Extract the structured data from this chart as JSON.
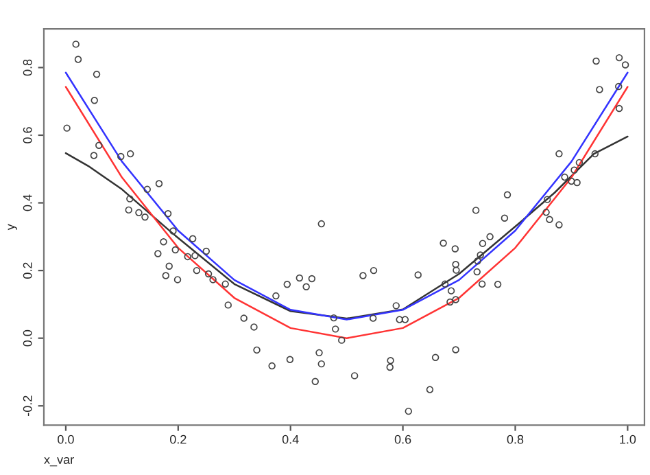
{
  "chart_data": {
    "type": "scatter",
    "xlabel": "x_var",
    "ylabel": "y",
    "xlim": [
      -0.039,
      1.03
    ],
    "ylim": [
      -0.257,
      0.914
    ],
    "xticks": [
      {
        "value": 0,
        "label": "0.0"
      },
      {
        "value": 0.2,
        "label": "0.2"
      },
      {
        "value": 0.4,
        "label": "0.4"
      },
      {
        "value": 0.6,
        "label": "0.6"
      },
      {
        "value": 0.8,
        "label": "0.8"
      },
      {
        "value": 1,
        "label": "1.0"
      }
    ],
    "yticks": [
      {
        "value": -0.2,
        "label": "-0.2"
      },
      {
        "value": 0,
        "label": "0.0"
      },
      {
        "value": 0.2,
        "label": "0.2"
      },
      {
        "value": 0.4,
        "label": "0.4"
      },
      {
        "value": 0.6,
        "label": "0.6"
      },
      {
        "value": 0.8,
        "label": "0.8"
      }
    ],
    "grid": false,
    "series": [
      {
        "marker": "circle",
        "color": "#444444",
        "x": [
          0.018,
          0.022,
          0.055,
          0.051,
          0.002,
          0.059,
          0.05,
          0.098,
          0.115,
          0.166,
          0.145,
          0.114,
          0.112,
          0.13,
          0.141,
          0.182,
          0.191,
          0.174,
          0.226,
          0.25,
          0.164,
          0.195,
          0.217,
          0.23,
          0.184,
          0.233,
          0.178,
          0.199,
          0.254,
          0.262,
          0.284,
          0.289,
          0.317,
          0.335,
          0.34,
          0.367,
          0.374,
          0.394,
          0.399,
          0.416,
          0.428,
          0.438,
          0.451,
          0.455,
          0.444,
          0.455,
          0.477,
          0.48,
          0.491,
          0.529,
          0.548,
          0.514,
          0.547,
          0.578,
          0.577,
          0.588,
          0.594,
          0.604,
          0.61,
          0.627,
          0.648,
          0.658,
          0.694,
          0.672,
          0.693,
          0.694,
          0.695,
          0.675,
          0.686,
          0.684,
          0.694,
          0.733,
          0.732,
          0.738,
          0.742,
          0.755,
          0.741,
          0.769,
          0.73,
          0.781,
          0.786,
          0.857,
          0.855,
          0.861,
          0.878,
          0.878,
          0.888,
          0.9,
          0.91,
          0.905,
          0.914,
          0.942,
          0.944,
          0.95,
          0.984,
          0.985,
          0.985,
          0.996
        ],
        "values": [
          0.869,
          0.824,
          0.78,
          0.703,
          0.621,
          0.57,
          0.54,
          0.537,
          0.545,
          0.457,
          0.44,
          0.412,
          0.379,
          0.371,
          0.358,
          0.368,
          0.317,
          0.285,
          0.294,
          0.257,
          0.25,
          0.261,
          0.241,
          0.244,
          0.213,
          0.2,
          0.185,
          0.173,
          0.19,
          0.173,
          0.16,
          0.098,
          0.059,
          0.033,
          -0.035,
          -0.082,
          0.125,
          0.159,
          -0.063,
          0.178,
          0.152,
          0.176,
          -0.043,
          -0.076,
          -0.128,
          0.338,
          0.06,
          0.027,
          -0.006,
          0.185,
          0.2,
          -0.111,
          0.059,
          -0.066,
          -0.086,
          0.096,
          0.055,
          0.055,
          -0.216,
          0.187,
          -0.152,
          -0.057,
          -0.034,
          0.281,
          0.264,
          0.218,
          0.201,
          0.16,
          0.14,
          0.107,
          0.114,
          0.228,
          0.196,
          0.246,
          0.28,
          0.3,
          0.16,
          0.159,
          0.378,
          0.355,
          0.424,
          0.41,
          0.372,
          0.351,
          0.335,
          0.545,
          0.476,
          0.464,
          0.46,
          0.497,
          0.519,
          0.545,
          0.819,
          0.735,
          0.744,
          0.679,
          0.829,
          0.808
        ]
      },
      {
        "type": "line",
        "marker": "none",
        "line_style": "solid",
        "color": "#333333",
        "x": [
          0,
          0.04,
          0.1,
          0.19,
          0.3,
          0.4,
          0.5,
          0.6,
          0.7,
          0.8,
          0.87,
          0.94,
          1.0
        ],
        "values": [
          0.547,
          0.509,
          0.44,
          0.31,
          0.16,
          0.08,
          0.058,
          0.085,
          0.19,
          0.33,
          0.43,
          0.545,
          0.596
        ]
      },
      {
        "type": "line",
        "marker": "none",
        "line_style": "solid",
        "color": "#3333ff",
        "x": [
          0,
          0.1,
          0.2,
          0.3,
          0.4,
          0.5,
          0.6,
          0.7,
          0.8,
          0.9,
          1.0
        ],
        "values": [
          0.785,
          0.522,
          0.318,
          0.172,
          0.084,
          0.055,
          0.084,
          0.172,
          0.318,
          0.522,
          0.785
        ]
      },
      {
        "type": "line",
        "marker": "none",
        "line_style": "solid",
        "color": "#ff3333",
        "x": [
          0,
          0.1,
          0.2,
          0.3,
          0.4,
          0.5,
          0.6,
          0.7,
          0.8,
          0.9,
          1.0
        ],
        "values": [
          0.743,
          0.475,
          0.267,
          0.119,
          0.03,
          0.0,
          0.03,
          0.119,
          0.267,
          0.475,
          0.743
        ]
      }
    ]
  }
}
